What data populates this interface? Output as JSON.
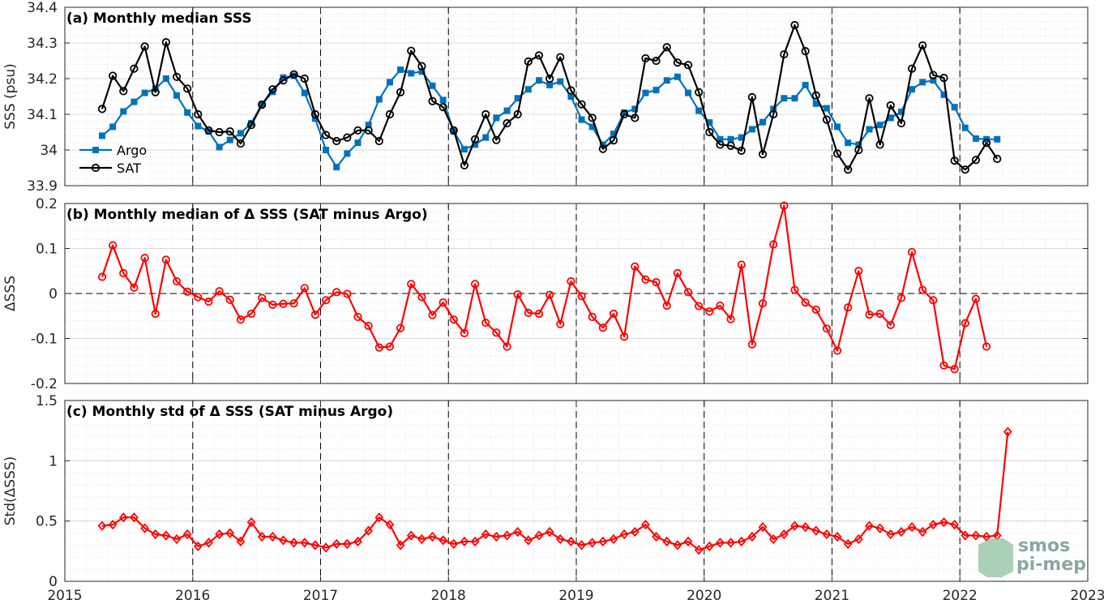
{
  "chart_data": [
    {
      "type": "line",
      "title": "(a) Monthly median SSS",
      "ylabel": "SSS (psu)",
      "xlim": [
        2015,
        2023
      ],
      "ylim": [
        33.9,
        34.4
      ],
      "x_ticks": [
        "2015",
        "2016",
        "2017",
        "2018",
        "2019",
        "2020",
        "2021",
        "2022",
        "2023"
      ],
      "y_ticks": [
        "33.9",
        "34",
        "34.1",
        "34.2",
        "34.3",
        "34.4"
      ],
      "y_tick_values": [
        33.9,
        34.0,
        34.1,
        34.2,
        34.3,
        34.4
      ],
      "legend_position": "bottom-left",
      "grid": true,
      "vlines_dashed": [
        2016,
        2017,
        2018,
        2019,
        2020,
        2021,
        2022
      ],
      "x_start": "2015-04",
      "series": [
        {
          "name": "Argo",
          "color": "#0072BD",
          "marker": "square",
          "values": [
            34.04,
            34.065,
            34.108,
            34.135,
            34.16,
            34.172,
            34.2,
            34.153,
            34.105,
            34.067,
            34.052,
            34.008,
            34.028,
            34.047,
            34.075,
            34.128,
            34.163,
            34.203,
            34.208,
            34.16,
            34.088,
            34.0,
            33.952,
            33.99,
            34.02,
            34.07,
            34.142,
            34.19,
            34.225,
            34.215,
            34.22,
            34.18,
            34.14,
            34.052,
            34.002,
            34.015,
            34.035,
            34.09,
            34.11,
            34.145,
            34.17,
            34.195,
            34.182,
            34.192,
            34.15,
            34.085,
            34.065,
            34.015,
            34.045,
            34.105,
            34.115,
            34.16,
            34.168,
            34.195,
            34.205,
            34.16,
            34.11,
            34.077,
            34.03,
            34.03,
            34.035,
            34.058,
            34.078,
            34.115,
            34.145,
            34.145,
            34.182,
            34.13,
            34.117,
            34.065,
            34.02,
            34.015,
            34.058,
            34.07,
            34.09,
            34.107,
            34.17,
            34.19,
            34.195,
            34.155,
            34.12,
            34.062,
            34.032,
            34.03,
            34.03
          ]
        },
        {
          "name": "SAT",
          "color": "#000000",
          "marker": "circle",
          "values": [
            34.115,
            34.208,
            34.165,
            34.228,
            34.29,
            34.162,
            34.302,
            34.205,
            34.172,
            34.1,
            34.055,
            34.05,
            34.052,
            34.018,
            34.07,
            34.127,
            34.17,
            34.195,
            34.212,
            34.2,
            34.1,
            34.042,
            34.025,
            34.035,
            34.055,
            34.055,
            34.025,
            34.1,
            34.162,
            34.278,
            34.235,
            34.137,
            34.12,
            34.055,
            33.957,
            34.03,
            34.1,
            34.028,
            34.075,
            34.1,
            34.248,
            34.265,
            34.2,
            34.26,
            34.167,
            34.128,
            34.09,
            34.003,
            34.027,
            34.1,
            34.09,
            34.257,
            34.25,
            34.288,
            34.245,
            34.238,
            34.162,
            34.05,
            34.015,
            34.012,
            33.998,
            34.148,
            33.988,
            34.1,
            34.268,
            34.35,
            34.277,
            34.153,
            34.085,
            33.99,
            33.945,
            34.0,
            34.145,
            34.015,
            34.125,
            34.075,
            34.228,
            34.293,
            34.21,
            34.202,
            33.97,
            33.945,
            33.972,
            34.02,
            33.975
          ]
        }
      ]
    },
    {
      "type": "line",
      "title": "(b) Monthly median of Δ SSS (SAT minus Argo)",
      "ylabel": "ΔSSS",
      "xlim": [
        2015,
        2023
      ],
      "ylim": [
        -0.2,
        0.2
      ],
      "x_ticks": [
        "2015",
        "2016",
        "2017",
        "2018",
        "2019",
        "2020",
        "2021",
        "2022",
        "2023"
      ],
      "y_ticks": [
        "-0.2",
        "-0.1",
        "0",
        "0.1",
        "0.2"
      ],
      "y_tick_values": [
        -0.2,
        -0.1,
        0.0,
        0.1,
        0.2
      ],
      "grid": true,
      "hline_dashed": 0,
      "vlines_dashed": [
        2016,
        2017,
        2018,
        2019,
        2020,
        2021,
        2022
      ],
      "x_start": "2015-04",
      "series": [
        {
          "color": "#FF0000",
          "marker": "circle",
          "values": [
            0.037,
            0.107,
            0.045,
            0.013,
            0.079,
            -0.045,
            0.075,
            0.027,
            0.004,
            -0.008,
            -0.018,
            0.005,
            -0.014,
            -0.058,
            -0.045,
            -0.01,
            -0.025,
            -0.023,
            -0.022,
            0.012,
            -0.047,
            -0.015,
            0.003,
            -0.001,
            -0.052,
            -0.072,
            -0.12,
            -0.118,
            -0.077,
            0.021,
            -0.008,
            -0.048,
            -0.02,
            -0.058,
            -0.088,
            0.021,
            -0.065,
            -0.087,
            -0.118,
            -0.002,
            -0.043,
            -0.045,
            -0.003,
            -0.068,
            0.027,
            -0.006,
            -0.052,
            -0.076,
            -0.045,
            -0.096,
            0.06,
            0.031,
            0.025,
            -0.027,
            0.045,
            0.003,
            -0.028,
            -0.04,
            -0.027,
            -0.057,
            0.064,
            -0.113,
            -0.022,
            0.109,
            0.195,
            0.008,
            -0.02,
            -0.036,
            -0.078,
            -0.127,
            -0.031,
            0.05,
            -0.047,
            -0.045,
            -0.07,
            -0.01,
            0.092,
            0.008,
            -0.015,
            -0.16,
            -0.168,
            -0.066,
            -0.012,
            -0.118
          ]
        }
      ]
    },
    {
      "type": "line",
      "title": "(c) Monthly std of Δ SSS (SAT minus Argo)",
      "ylabel": "Std(ΔSSS)",
      "xlim": [
        2015,
        2023
      ],
      "ylim": [
        0,
        1.5
      ],
      "x_ticks": [
        "2015",
        "2016",
        "2017",
        "2018",
        "2019",
        "2020",
        "2021",
        "2022",
        "2023"
      ],
      "y_ticks": [
        "0",
        "0.5",
        "1",
        "1.5"
      ],
      "y_tick_values": [
        0,
        0.5,
        1.0,
        1.5
      ],
      "grid": true,
      "vlines_dashed": [
        2016,
        2017,
        2018,
        2019,
        2020,
        2021,
        2022
      ],
      "x_start": "2015-04",
      "series": [
        {
          "color": "#FF0000",
          "marker": "diamond",
          "values": [
            0.46,
            0.47,
            0.53,
            0.53,
            0.44,
            0.39,
            0.38,
            0.35,
            0.39,
            0.29,
            0.32,
            0.39,
            0.4,
            0.33,
            0.49,
            0.37,
            0.37,
            0.34,
            0.32,
            0.32,
            0.3,
            0.28,
            0.31,
            0.31,
            0.33,
            0.42,
            0.53,
            0.47,
            0.3,
            0.38,
            0.35,
            0.37,
            0.34,
            0.31,
            0.33,
            0.33,
            0.39,
            0.37,
            0.38,
            0.41,
            0.34,
            0.38,
            0.41,
            0.35,
            0.33,
            0.3,
            0.32,
            0.33,
            0.35,
            0.39,
            0.41,
            0.47,
            0.37,
            0.33,
            0.3,
            0.33,
            0.26,
            0.29,
            0.32,
            0.32,
            0.33,
            0.37,
            0.45,
            0.35,
            0.39,
            0.46,
            0.45,
            0.42,
            0.39,
            0.37,
            0.31,
            0.35,
            0.46,
            0.44,
            0.39,
            0.41,
            0.45,
            0.41,
            0.47,
            0.49,
            0.47,
            0.38,
            0.38,
            0.37,
            0.38,
            1.24
          ]
        }
      ]
    }
  ],
  "watermark": {
    "line1": "smos",
    "line2": "pi-mep"
  }
}
